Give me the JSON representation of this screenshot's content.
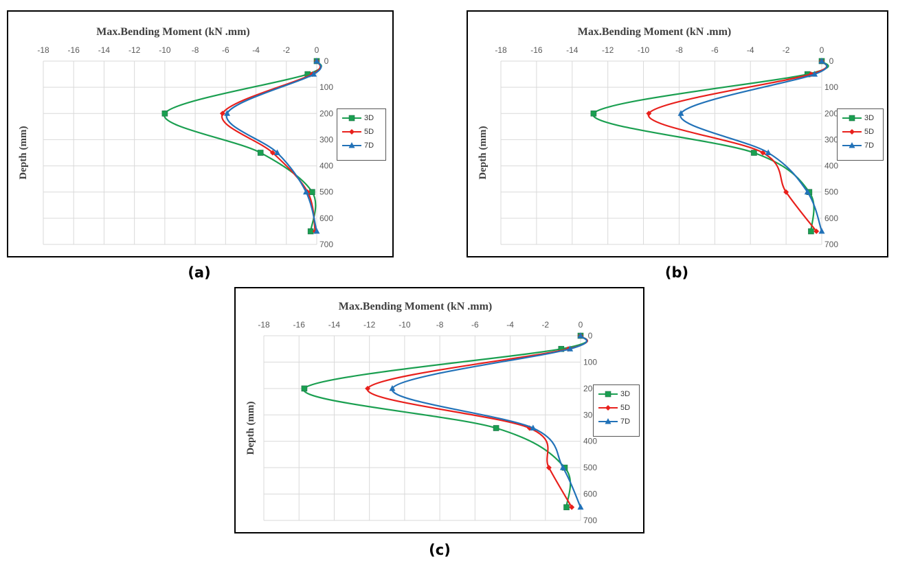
{
  "figure": {
    "captions": [
      "(a)",
      "(b)",
      "(c)"
    ]
  },
  "chart_data": [
    {
      "type": "line",
      "panel": "(a)",
      "title": "Max.Bending Moment (kN .mm)",
      "xlabel": "Max.Bending Moment (kN .mm)",
      "ylabel": "Depth (mm)",
      "xlim": [
        -18,
        0
      ],
      "ylim": [
        0,
        700
      ],
      "y_reversed": true,
      "x_axis_position": "top",
      "y_axis_position": "right",
      "x_ticks": [
        "-18",
        "-16",
        "-14",
        "-12",
        "-10",
        "-8",
        "-6",
        "-4",
        "-2",
        "0"
      ],
      "y_ticks": [
        "0",
        "100",
        "200",
        "300",
        "400",
        "500",
        "600",
        "700"
      ],
      "grid": true,
      "legend_position": "right",
      "series": [
        {
          "name": "3D",
          "color": "#1a9f50",
          "marker": "square",
          "x": [
            0,
            -0.6,
            -10.0,
            -3.7,
            -0.3,
            -0.4
          ],
          "y": [
            0,
            50,
            200,
            350,
            500,
            650
          ]
        },
        {
          "name": "5D",
          "color": "#e8201c",
          "marker": "diamond",
          "x": [
            0,
            -0.3,
            -6.2,
            -2.9,
            -0.6,
            -0.1
          ],
          "y": [
            0,
            50,
            200,
            350,
            500,
            650
          ]
        },
        {
          "name": "7D",
          "color": "#2272b8",
          "marker": "triangle",
          "x": [
            0,
            -0.2,
            -5.9,
            -2.6,
            -0.7,
            0
          ],
          "y": [
            0,
            50,
            200,
            350,
            500,
            650
          ]
        }
      ]
    },
    {
      "type": "line",
      "panel": "(b)",
      "title": "Max.Bending Moment (kN .mm)",
      "xlabel": "Max.Bending Moment (kN .mm)",
      "ylabel": "Depth (mm)",
      "xlim": [
        -18,
        0
      ],
      "ylim": [
        0,
        700
      ],
      "y_reversed": true,
      "x_axis_position": "top",
      "y_axis_position": "right",
      "x_ticks": [
        "-18",
        "-16",
        "-14",
        "-12",
        "-10",
        "-8",
        "-6",
        "-4",
        "-2",
        "0"
      ],
      "y_ticks": [
        "0",
        "100",
        "200",
        "300",
        "400",
        "500",
        "600",
        "700"
      ],
      "grid": true,
      "legend_position": "right",
      "series": [
        {
          "name": "3D",
          "color": "#1a9f50",
          "marker": "square",
          "x": [
            0,
            -0.8,
            -12.8,
            -3.8,
            -0.7,
            -0.6
          ],
          "y": [
            0,
            50,
            200,
            350,
            500,
            650
          ]
        },
        {
          "name": "5D",
          "color": "#e8201c",
          "marker": "diamond",
          "x": [
            0,
            -0.6,
            -9.7,
            -3.3,
            -2.0,
            -0.3
          ],
          "y": [
            0,
            50,
            200,
            350,
            500,
            650
          ]
        },
        {
          "name": "7D",
          "color": "#2272b8",
          "marker": "triangle",
          "x": [
            0,
            -0.4,
            -7.9,
            -3.0,
            -0.8,
            0
          ],
          "y": [
            0,
            50,
            200,
            350,
            500,
            650
          ]
        }
      ]
    },
    {
      "type": "line",
      "panel": "(c)",
      "title": "Max.Bending Moment (kN .mm)",
      "xlabel": "Max.Bending Moment (kN .mm)",
      "ylabel": "Depth (mm)",
      "xlim": [
        -18,
        0
      ],
      "ylim": [
        0,
        700
      ],
      "y_reversed": true,
      "x_axis_position": "top",
      "y_axis_position": "right",
      "x_ticks": [
        "-18",
        "-16",
        "-14",
        "-12",
        "-10",
        "-8",
        "-6",
        "-4",
        "-2",
        "0"
      ],
      "y_ticks": [
        "0",
        "100",
        "200",
        "300",
        "400",
        "500",
        "600",
        "700"
      ],
      "grid": true,
      "legend_position": "right",
      "series": [
        {
          "name": "3D",
          "color": "#1a9f50",
          "marker": "square",
          "x": [
            0,
            -1.1,
            -15.7,
            -4.8,
            -0.9,
            -0.8
          ],
          "y": [
            0,
            50,
            200,
            350,
            500,
            650
          ]
        },
        {
          "name": "5D",
          "color": "#e8201c",
          "marker": "diamond",
          "x": [
            0,
            -0.7,
            -12.1,
            -2.9,
            -1.8,
            -0.5
          ],
          "y": [
            0,
            50,
            200,
            350,
            500,
            650
          ]
        },
        {
          "name": "7D",
          "color": "#2272b8",
          "marker": "triangle",
          "x": [
            0,
            -0.6,
            -10.7,
            -2.7,
            -1.0,
            0
          ],
          "y": [
            0,
            50,
            200,
            350,
            500,
            650
          ]
        }
      ]
    }
  ]
}
